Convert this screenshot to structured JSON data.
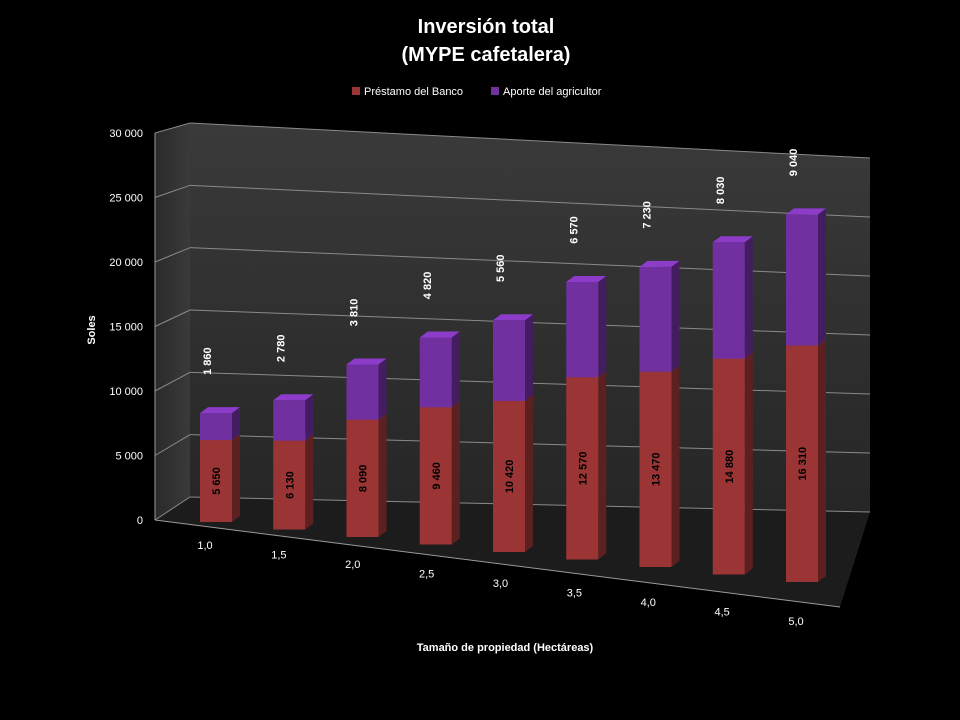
{
  "chart_data": {
    "type": "bar",
    "stacked": true,
    "title_line1": "Inversión total",
    "title_line2": "(MYPE cafetalera)",
    "xlabel": "Tamaño de propiedad (Hectáreas)",
    "ylabel": "Soles",
    "ylim": [
      0,
      30000
    ],
    "yticks": [
      "0",
      "5 000",
      "10 000",
      "15 000",
      "20 000",
      "25 000",
      "30 000"
    ],
    "categories": [
      "1,0",
      "1,5",
      "2,0",
      "2,5",
      "3,0",
      "3,5",
      "4,0",
      "4,5",
      "5,0"
    ],
    "legend_position": "top",
    "grid": true,
    "series": [
      {
        "name": "Préstamo del Banco",
        "color": "#9b3535",
        "values": [
          5650,
          6130,
          8090,
          9460,
          10420,
          12570,
          13470,
          14880,
          16310
        ],
        "labels": [
          "5 650",
          "6 130",
          "8 090",
          "9 460",
          "10 420",
          "12 570",
          "13 470",
          "14 880",
          "16 310"
        ]
      },
      {
        "name": "Aporte del agricultor",
        "color": "#7030a0",
        "values": [
          1860,
          2780,
          3810,
          4820,
          5560,
          6570,
          7230,
          8030,
          9040
        ],
        "labels": [
          "1 860",
          "2 780",
          "3 810",
          "4 820",
          "5 560",
          "6 570",
          "7 230",
          "8 030",
          "9 040"
        ]
      }
    ]
  }
}
